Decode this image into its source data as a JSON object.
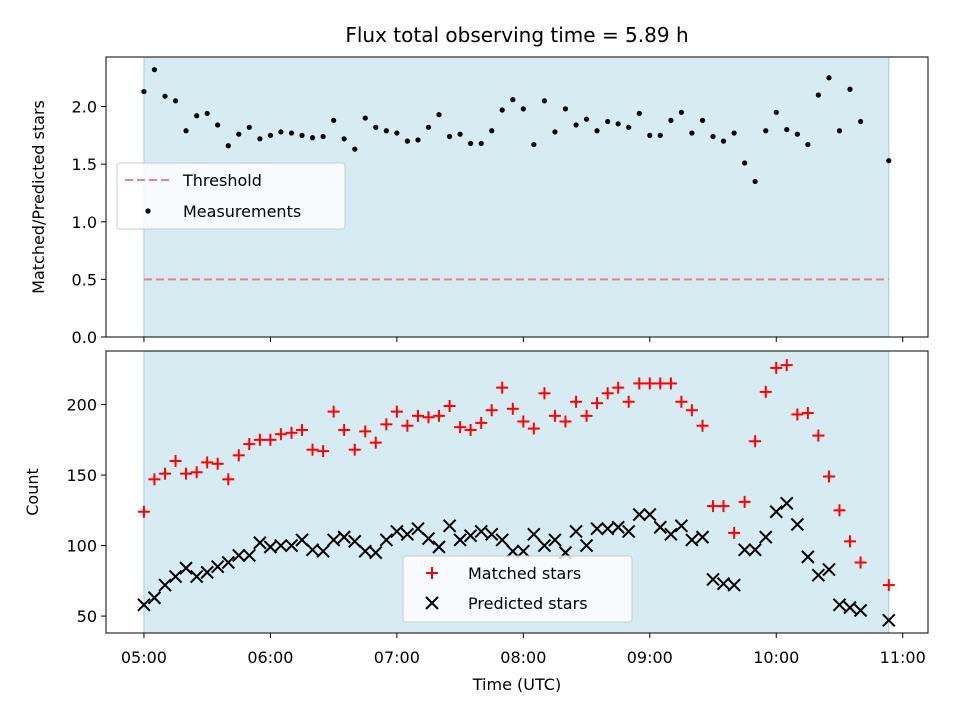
{
  "chart_data": [
    {
      "type": "scatter",
      "title": "Flux total observing time = 5.89 h",
      "ylabel": "Matched/Predicted stars",
      "xlabel": "",
      "x_range_hours": [
        4.7,
        11.2
      ],
      "ylim": [
        0,
        2.43
      ],
      "yticks": [
        0.0,
        0.5,
        1.0,
        1.5,
        2.0
      ],
      "ytick_labels": [
        "0.0",
        "0.5",
        "1.0",
        "1.5",
        "2.0"
      ],
      "observing_window_hours": [
        5.0,
        10.89
      ],
      "legend_position": "center-left",
      "threshold": {
        "name": "Threshold",
        "value": 0.5,
        "color": "#f08080",
        "style": "dashed"
      },
      "series": [
        {
          "name": "Measurements",
          "color": "#000000",
          "x": [
            5.0,
            5.083,
            5.167,
            5.25,
            5.333,
            5.417,
            5.5,
            5.583,
            5.667,
            5.75,
            5.833,
            5.917,
            6.0,
            6.083,
            6.167,
            6.25,
            6.333,
            6.417,
            6.5,
            6.583,
            6.667,
            6.75,
            6.833,
            6.917,
            7.0,
            7.083,
            7.167,
            7.25,
            7.333,
            7.417,
            7.5,
            7.583,
            7.667,
            7.75,
            7.833,
            7.917,
            8.0,
            8.083,
            8.167,
            8.25,
            8.333,
            8.417,
            8.5,
            8.583,
            8.667,
            8.75,
            8.833,
            8.917,
            9.0,
            9.083,
            9.167,
            9.25,
            9.333,
            9.417,
            9.5,
            9.583,
            9.667,
            9.75,
            9.833,
            9.917,
            10.0,
            10.083,
            10.167,
            10.25,
            10.333,
            10.417,
            10.5,
            10.583,
            10.667,
            10.89
          ],
          "y": [
            2.13,
            2.32,
            2.09,
            2.05,
            1.79,
            1.92,
            1.94,
            1.84,
            1.66,
            1.76,
            1.82,
            1.72,
            1.75,
            1.78,
            1.77,
            1.75,
            1.73,
            1.74,
            1.88,
            1.72,
            1.63,
            1.9,
            1.82,
            1.79,
            1.77,
            1.7,
            1.71,
            1.82,
            1.93,
            1.74,
            1.76,
            1.68,
            1.68,
            1.79,
            1.97,
            2.06,
            1.98,
            1.67,
            2.05,
            1.78,
            1.98,
            1.84,
            1.89,
            1.79,
            1.87,
            1.85,
            1.82,
            1.94,
            1.75,
            1.75,
            1.88,
            1.95,
            1.77,
            1.88,
            1.74,
            1.7,
            1.77,
            1.51,
            1.35,
            1.79,
            1.95,
            1.8,
            1.76,
            1.67,
            2.1,
            2.25,
            1.79,
            2.15,
            1.87,
            1.53
          ]
        }
      ]
    },
    {
      "type": "scatter",
      "title": "",
      "ylabel": "Count",
      "xlabel": "Time (UTC)",
      "x_range_hours": [
        4.7,
        11.2
      ],
      "xticks_hours": [
        5,
        6,
        7,
        8,
        9,
        10,
        11
      ],
      "xtick_labels": [
        "05:00",
        "06:00",
        "07:00",
        "08:00",
        "09:00",
        "10:00",
        "11:00"
      ],
      "ylim": [
        38,
        238
      ],
      "yticks": [
        50,
        100,
        150,
        200
      ],
      "ytick_labels": [
        "50",
        "100",
        "150",
        "200"
      ],
      "observing_window_hours": [
        5.0,
        10.89
      ],
      "legend_position": "lower-center",
      "series": [
        {
          "name": "Matched stars",
          "marker": "plus",
          "color": "#ff0000",
          "x": [
            5.0,
            5.083,
            5.167,
            5.25,
            5.333,
            5.417,
            5.5,
            5.583,
            5.667,
            5.75,
            5.833,
            5.917,
            6.0,
            6.083,
            6.167,
            6.25,
            6.333,
            6.417,
            6.5,
            6.583,
            6.667,
            6.75,
            6.833,
            6.917,
            7.0,
            7.083,
            7.167,
            7.25,
            7.333,
            7.417,
            7.5,
            7.583,
            7.667,
            7.75,
            7.833,
            7.917,
            8.0,
            8.083,
            8.167,
            8.25,
            8.333,
            8.417,
            8.5,
            8.583,
            8.667,
            8.75,
            8.833,
            8.917,
            9.0,
            9.083,
            9.167,
            9.25,
            9.333,
            9.417,
            9.5,
            9.583,
            9.667,
            9.75,
            9.833,
            9.917,
            10.0,
            10.083,
            10.167,
            10.25,
            10.333,
            10.417,
            10.5,
            10.583,
            10.667,
            10.89
          ],
          "y": [
            124,
            147,
            151,
            160,
            151,
            152,
            159,
            158,
            147,
            164,
            172,
            175,
            175,
            179,
            180,
            182,
            168,
            167,
            195,
            182,
            168,
            181,
            173,
            186,
            195,
            185,
            192,
            191,
            192,
            199,
            184,
            182,
            187,
            196,
            212,
            197,
            188,
            183,
            208,
            192,
            188,
            202,
            192,
            201,
            208,
            212,
            202,
            215,
            215,
            215,
            215,
            202,
            196,
            185,
            128,
            128,
            109,
            131,
            174,
            209,
            226,
            228,
            193,
            194,
            178,
            149,
            125,
            103,
            88,
            72
          ]
        },
        {
          "name": "Predicted stars",
          "marker": "x",
          "color": "#000000",
          "x": [
            5.0,
            5.083,
            5.167,
            5.25,
            5.333,
            5.417,
            5.5,
            5.583,
            5.667,
            5.75,
            5.833,
            5.917,
            6.0,
            6.083,
            6.167,
            6.25,
            6.333,
            6.417,
            6.5,
            6.583,
            6.667,
            6.75,
            6.833,
            6.917,
            7.0,
            7.083,
            7.167,
            7.25,
            7.333,
            7.417,
            7.5,
            7.583,
            7.667,
            7.75,
            7.833,
            7.917,
            8.0,
            8.083,
            8.167,
            8.25,
            8.333,
            8.417,
            8.5,
            8.583,
            8.667,
            8.75,
            8.833,
            8.917,
            9.0,
            9.083,
            9.167,
            9.25,
            9.333,
            9.417,
            9.5,
            9.583,
            9.667,
            9.75,
            9.833,
            9.917,
            10.0,
            10.083,
            10.167,
            10.25,
            10.333,
            10.417,
            10.5,
            10.583,
            10.667,
            10.89
          ],
          "y": [
            58,
            63,
            72,
            78,
            84,
            78,
            81,
            85,
            88,
            93,
            93,
            102,
            99,
            100,
            100,
            104,
            97,
            96,
            104,
            106,
            103,
            96,
            95,
            104,
            110,
            108,
            112,
            105,
            99,
            114,
            104,
            107,
            110,
            108,
            104,
            96,
            96,
            108,
            100,
            104,
            95,
            110,
            100,
            112,
            112,
            113,
            110,
            122,
            122,
            113,
            108,
            114,
            104,
            106,
            76,
            73,
            72,
            97,
            97,
            106,
            124,
            130,
            115,
            92,
            79,
            83,
            58,
            56,
            54,
            47
          ]
        }
      ]
    }
  ]
}
